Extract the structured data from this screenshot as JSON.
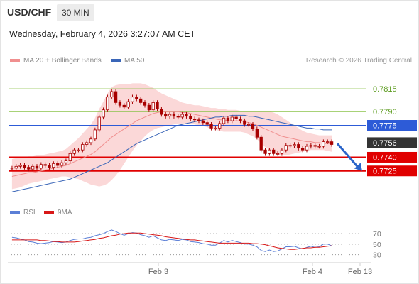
{
  "header": {
    "symbol": "USD/CHF",
    "timeframe": "30 MIN",
    "datetime": "Wednesday, February 4, 2026 3:27:07 AM CET",
    "credit": "Research © 2026 Trading Central"
  },
  "legend": {
    "ma20_label": "MA 20 + Bollinger Bands",
    "ma50_label": "MA 50",
    "rsi_label": "RSI",
    "ma9_label": "9MA"
  },
  "colors": {
    "bollinger_fill": "#fbd8d8",
    "ma20": "#f08f8f",
    "ma50": "#3a66b8",
    "candle": "#a80000",
    "resistance": "#8bc34a",
    "support": "#e00000",
    "pivot": "#2d5bd7",
    "rsi": "#5b7fd6",
    "rsi_ma9": "#d81818",
    "current_price_box": "#333333",
    "arrow": "#2a64c9"
  },
  "chart_data": [
    {
      "type": "candlestick",
      "title": "USD/CHF 30 MIN",
      "x_ticks": [
        "Feb 3",
        "Feb 4",
        "Feb 13"
      ],
      "ylim": [
        0.7696,
        0.7833
      ],
      "price_levels": [
        {
          "label": "0.7815",
          "value": 0.7815,
          "kind": "resistance"
        },
        {
          "label": "0.7790",
          "value": 0.779,
          "kind": "resistance"
        },
        {
          "label": "0.7775",
          "value": 0.7775,
          "kind": "pivot"
        },
        {
          "label": "0.7756",
          "value": 0.7756,
          "kind": "current"
        },
        {
          "label": "0.7740",
          "value": 0.774,
          "kind": "support"
        },
        {
          "label": "0.7725",
          "value": 0.7725,
          "kind": "support"
        }
      ],
      "close": [
        0.7728,
        0.773,
        0.7731,
        0.7729,
        0.7727,
        0.773,
        0.7728,
        0.7732,
        0.7731,
        0.7729,
        0.7733,
        0.7731,
        0.7734,
        0.7736,
        0.7744,
        0.7748,
        0.7748,
        0.7754,
        0.7756,
        0.776,
        0.777,
        0.7784,
        0.7792,
        0.7806,
        0.7812,
        0.78,
        0.7797,
        0.7795,
        0.7801,
        0.7806,
        0.7804,
        0.78,
        0.7797,
        0.7792,
        0.78,
        0.7793,
        0.7787,
        0.7785,
        0.7787,
        0.7785,
        0.7784,
        0.7787,
        0.7785,
        0.7782,
        0.7781,
        0.778,
        0.7778,
        0.7776,
        0.7772,
        0.7772,
        0.7777,
        0.7783,
        0.778,
        0.7784,
        0.7782,
        0.778,
        0.7776,
        0.7776,
        0.7771,
        0.7762,
        0.7748,
        0.7744,
        0.7748,
        0.7744,
        0.7744,
        0.7748,
        0.7753,
        0.7753,
        0.7754,
        0.775,
        0.7748,
        0.7752,
        0.7753,
        0.7752,
        0.7752,
        0.7757,
        0.7757,
        0.7754
      ],
      "ma20": [
        0.7719,
        0.772,
        0.7721,
        0.7722,
        0.7723,
        0.7723,
        0.7724,
        0.7725,
        0.7726,
        0.7727,
        0.7728,
        0.7729,
        0.773,
        0.7731,
        0.7733,
        0.7735,
        0.7737,
        0.7739,
        0.7741,
        0.7743,
        0.7746,
        0.775,
        0.7754,
        0.7758,
        0.7762,
        0.7765,
        0.7768,
        0.7771,
        0.7774,
        0.7777,
        0.778,
        0.7782,
        0.7784,
        0.7786,
        0.7788,
        0.7789,
        0.779,
        0.779,
        0.779,
        0.779,
        0.779,
        0.7789,
        0.7789,
        0.7788,
        0.7787,
        0.7786,
        0.7785,
        0.7784,
        0.7783,
        0.7782,
        0.7781,
        0.7781,
        0.778,
        0.778,
        0.778,
        0.778,
        0.7779,
        0.7778,
        0.7777,
        0.7775,
        0.7773,
        0.7771,
        0.7769,
        0.7767,
        0.7765,
        0.7763,
        0.7762,
        0.7761,
        0.776,
        0.7759,
        0.7758,
        0.7757,
        0.7757,
        0.7756,
        0.7756,
        0.7755,
        0.7755,
        0.7755
      ],
      "bb_upper": [
        0.7738,
        0.7739,
        0.774,
        0.774,
        0.7741,
        0.7741,
        0.7742,
        0.7742,
        0.7743,
        0.7744,
        0.7745,
        0.7746,
        0.7747,
        0.7749,
        0.7753,
        0.7757,
        0.7761,
        0.7766,
        0.7771,
        0.7776,
        0.7783,
        0.7793,
        0.7801,
        0.781,
        0.7817,
        0.7819,
        0.782,
        0.782,
        0.782,
        0.7821,
        0.7821,
        0.7821,
        0.782,
        0.7818,
        0.7816,
        0.7813,
        0.781,
        0.7808,
        0.7806,
        0.7804,
        0.7802,
        0.78,
        0.7799,
        0.7798,
        0.7797,
        0.7797,
        0.7796,
        0.7795,
        0.7794,
        0.7794,
        0.7793,
        0.7793,
        0.7792,
        0.7792,
        0.7792,
        0.7791,
        0.7791,
        0.7791,
        0.779,
        0.779,
        0.7791,
        0.7791,
        0.779,
        0.7789,
        0.7787,
        0.7784,
        0.7781,
        0.7778,
        0.7775,
        0.7772,
        0.7769,
        0.7767,
        0.7766,
        0.7765,
        0.7764,
        0.7764,
        0.7764,
        0.7764
      ],
      "bb_lower": [
        0.7705,
        0.7706,
        0.7707,
        0.7709,
        0.7711,
        0.7712,
        0.7713,
        0.7714,
        0.7715,
        0.7716,
        0.7717,
        0.7718,
        0.7719,
        0.7719,
        0.7718,
        0.7717,
        0.7716,
        0.7714,
        0.7712,
        0.771,
        0.7709,
        0.7708,
        0.7709,
        0.7711,
        0.7715,
        0.772,
        0.7726,
        0.7733,
        0.774,
        0.7747,
        0.7753,
        0.7758,
        0.7763,
        0.7767,
        0.777,
        0.7772,
        0.7773,
        0.7774,
        0.7775,
        0.7776,
        0.7777,
        0.7777,
        0.7777,
        0.7777,
        0.7776,
        0.7775,
        0.7774,
        0.7773,
        0.7771,
        0.777,
        0.7769,
        0.7768,
        0.7768,
        0.7768,
        0.7768,
        0.7768,
        0.7767,
        0.7765,
        0.7763,
        0.776,
        0.7755,
        0.7751,
        0.7748,
        0.7745,
        0.7743,
        0.7742,
        0.7742,
        0.7743,
        0.7744,
        0.7745,
        0.7746,
        0.7747,
        0.7748,
        0.7748,
        0.7748,
        0.7748,
        0.7747,
        0.7746
      ],
      "ma50": [
        0.7702,
        0.7703,
        0.7704,
        0.7705,
        0.7706,
        0.7707,
        0.7708,
        0.7709,
        0.771,
        0.7711,
        0.7712,
        0.7713,
        0.7714,
        0.7715,
        0.7716,
        0.7718,
        0.772,
        0.7722,
        0.7724,
        0.7726,
        0.7728,
        0.773,
        0.7732,
        0.7734,
        0.7737,
        0.774,
        0.7743,
        0.7746,
        0.7749,
        0.7752,
        0.7755,
        0.7757,
        0.7759,
        0.7761,
        0.7763,
        0.7765,
        0.7767,
        0.7769,
        0.7771,
        0.7773,
        0.7775,
        0.7776,
        0.7777,
        0.7778,
        0.7779,
        0.778,
        0.7781,
        0.7782,
        0.7783,
        0.7784,
        0.7784,
        0.7785,
        0.7785,
        0.7786,
        0.7786,
        0.7786,
        0.7786,
        0.7785,
        0.7785,
        0.7784,
        0.7783,
        0.7782,
        0.7781,
        0.778,
        0.7779,
        0.7778,
        0.7777,
        0.7776,
        0.7775,
        0.7774,
        0.7773,
        0.7772,
        0.7772,
        0.7771,
        0.7771,
        0.777,
        0.777,
        0.777
      ],
      "forecast_arrow": {
        "from": 0.7755,
        "to": 0.7725
      }
    },
    {
      "type": "line",
      "title": "RSI",
      "y_ticks": [
        70,
        50,
        30
      ],
      "ylim": [
        20,
        85
      ],
      "series": [
        {
          "name": "RSI",
          "values": [
            63,
            62,
            60,
            58,
            55,
            54,
            52,
            51,
            52,
            53,
            55,
            54,
            53,
            54,
            57,
            59,
            60,
            60,
            62,
            63,
            66,
            68,
            70,
            74,
            77,
            74,
            70,
            67,
            70,
            72,
            71,
            68,
            66,
            63,
            66,
            62,
            58,
            57,
            59,
            58,
            57,
            59,
            58,
            55,
            54,
            53,
            51,
            50,
            48,
            48,
            52,
            57,
            54,
            57,
            55,
            53,
            50,
            50,
            48,
            45,
            38,
            36,
            39,
            36,
            37,
            41,
            45,
            45,
            46,
            43,
            41,
            44,
            46,
            44,
            45,
            50,
            50,
            47
          ]
        },
        {
          "name": "9MA",
          "values": [
            58,
            58,
            58,
            58,
            58,
            58,
            58,
            57,
            57,
            56,
            55,
            55,
            54,
            54,
            54,
            54,
            55,
            56,
            57,
            58,
            59,
            61,
            62,
            64,
            66,
            67,
            69,
            70,
            71,
            71,
            71,
            71,
            70,
            69,
            68,
            67,
            66,
            64,
            63,
            62,
            61,
            60,
            59,
            58,
            58,
            57,
            56,
            55,
            54,
            53,
            52,
            52,
            52,
            52,
            52,
            52,
            52,
            52,
            51,
            51,
            50,
            49,
            47,
            45,
            43,
            42,
            41,
            40,
            40,
            41,
            42,
            43,
            43,
            44,
            44,
            45,
            46,
            47
          ]
        }
      ]
    }
  ]
}
